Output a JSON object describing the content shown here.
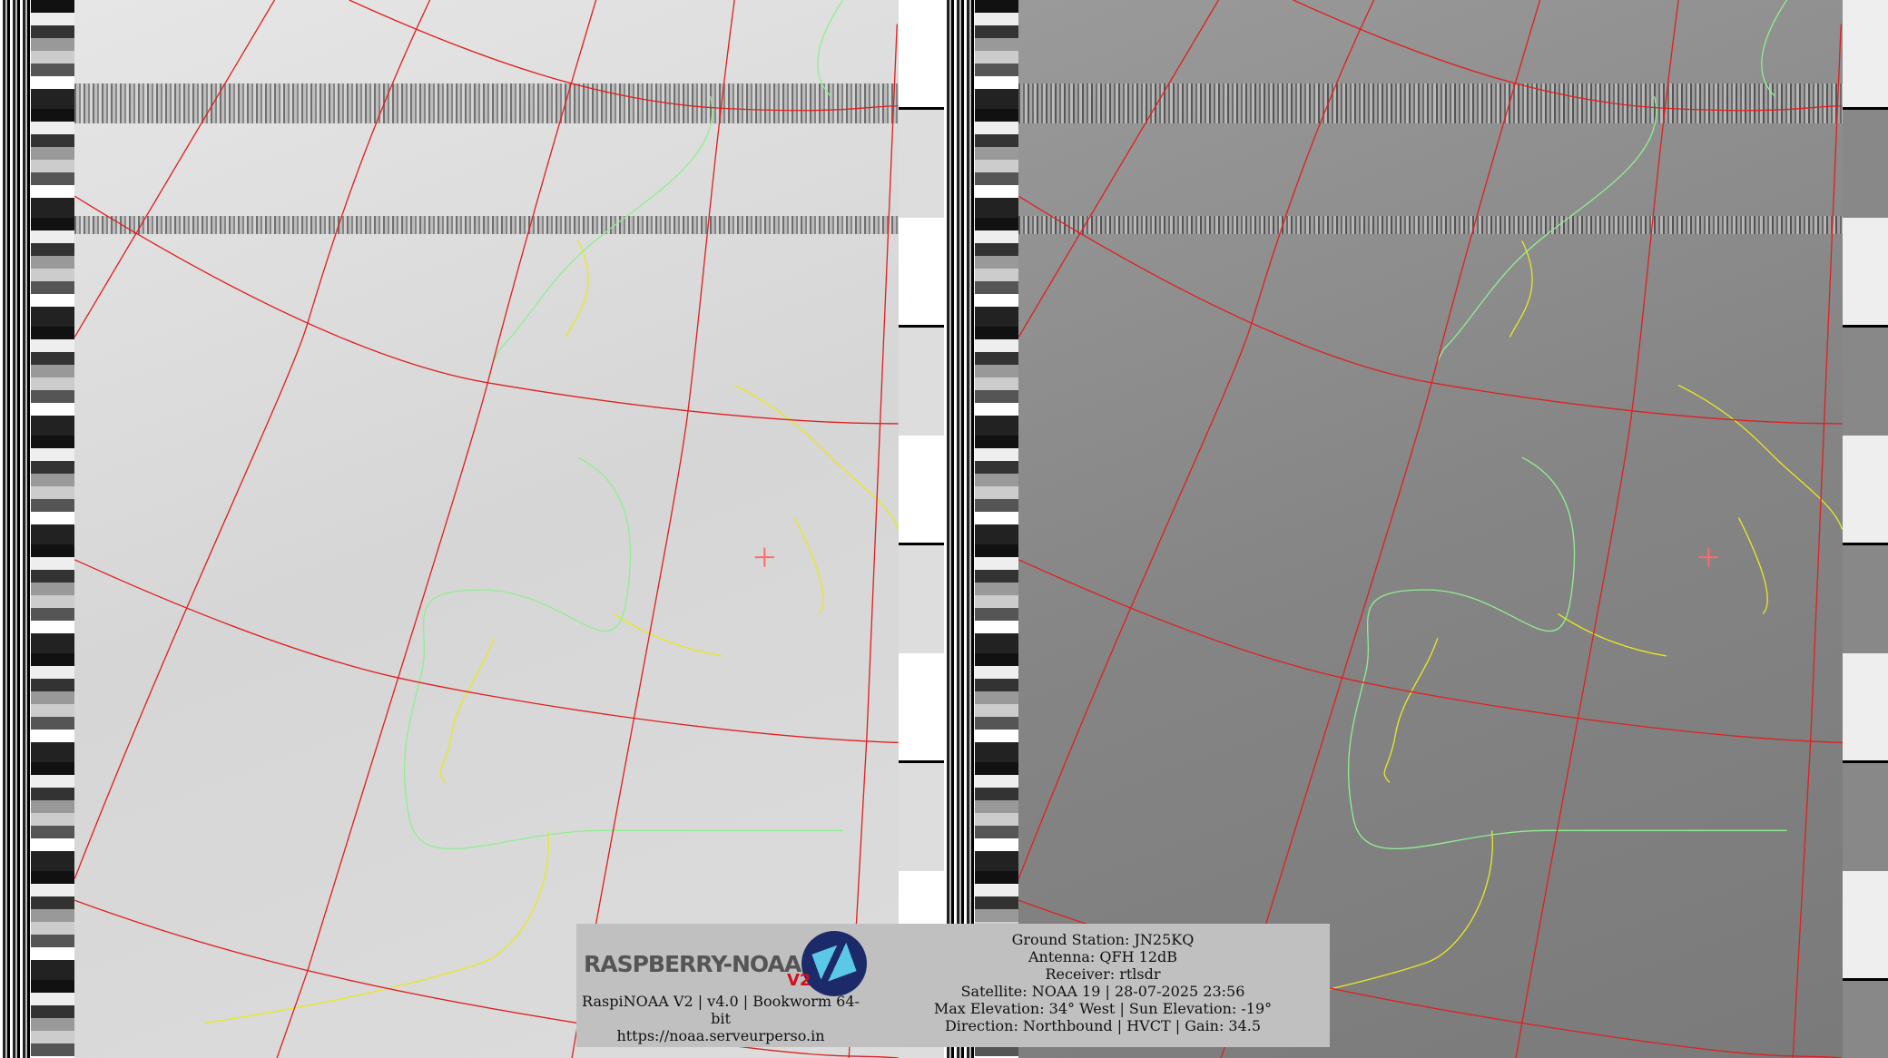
{
  "logo": {
    "text": "RASPBERRY-NOAA",
    "badge": "V2"
  },
  "footer_left": {
    "version": "RaspiNOAA V2 | v4.0 | Bookworm 64-bit",
    "url": "https://noaa.serveurperso.in"
  },
  "footer_right": {
    "lines": [
      "Ground Station: JN25KQ",
      "Antenna: QFH 12dB",
      "Receiver: rtlsdr",
      "Satellite: NOAA 19 | 28-07-2025 23:56",
      "Max Elevation: 34° West | Sun Elevation: -19°",
      "Direction: Northbound | HVCT | Gain: 34.5"
    ]
  },
  "colors": {
    "grid": "#e02020",
    "coast": "#90ee90",
    "border": "#e8e820",
    "crosshair": "#ff6a6a",
    "info_bg": "#c0c0c0"
  }
}
